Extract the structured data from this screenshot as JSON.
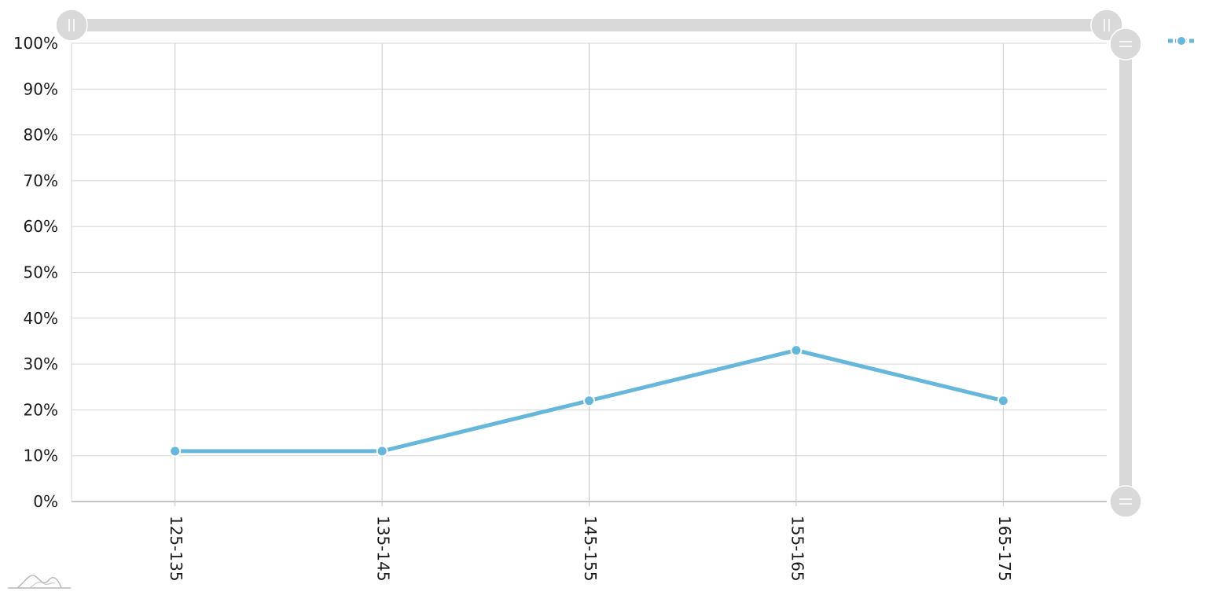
{
  "chart_data": {
    "type": "line",
    "categories": [
      "125-135",
      "135-145",
      "145-155",
      "155-165",
      "165-175"
    ],
    "series": [
      {
        "values": [
          0.11,
          0.11,
          0.22,
          0.33,
          0.22
        ]
      }
    ],
    "yticks": [
      "0%",
      "10%",
      "20%",
      "30%",
      "40%",
      "50%",
      "60%",
      "70%",
      "80%",
      "90%",
      "100%"
    ],
    "ylim": [
      0,
      1
    ],
    "grid": true,
    "legend": "top-right",
    "color": "#67b7dc",
    "grid_color": "#d5d5d5",
    "scrollbar_color": "#d9d9d9"
  },
  "ui": {
    "horizontal_scrollbar_icon": "grip-vertical-icon",
    "vertical_scrollbar_icon": "grip-horizontal-icon",
    "watermark_icon": "chart-logo-icon",
    "legend_marker_icon": "line-marker-icon"
  }
}
